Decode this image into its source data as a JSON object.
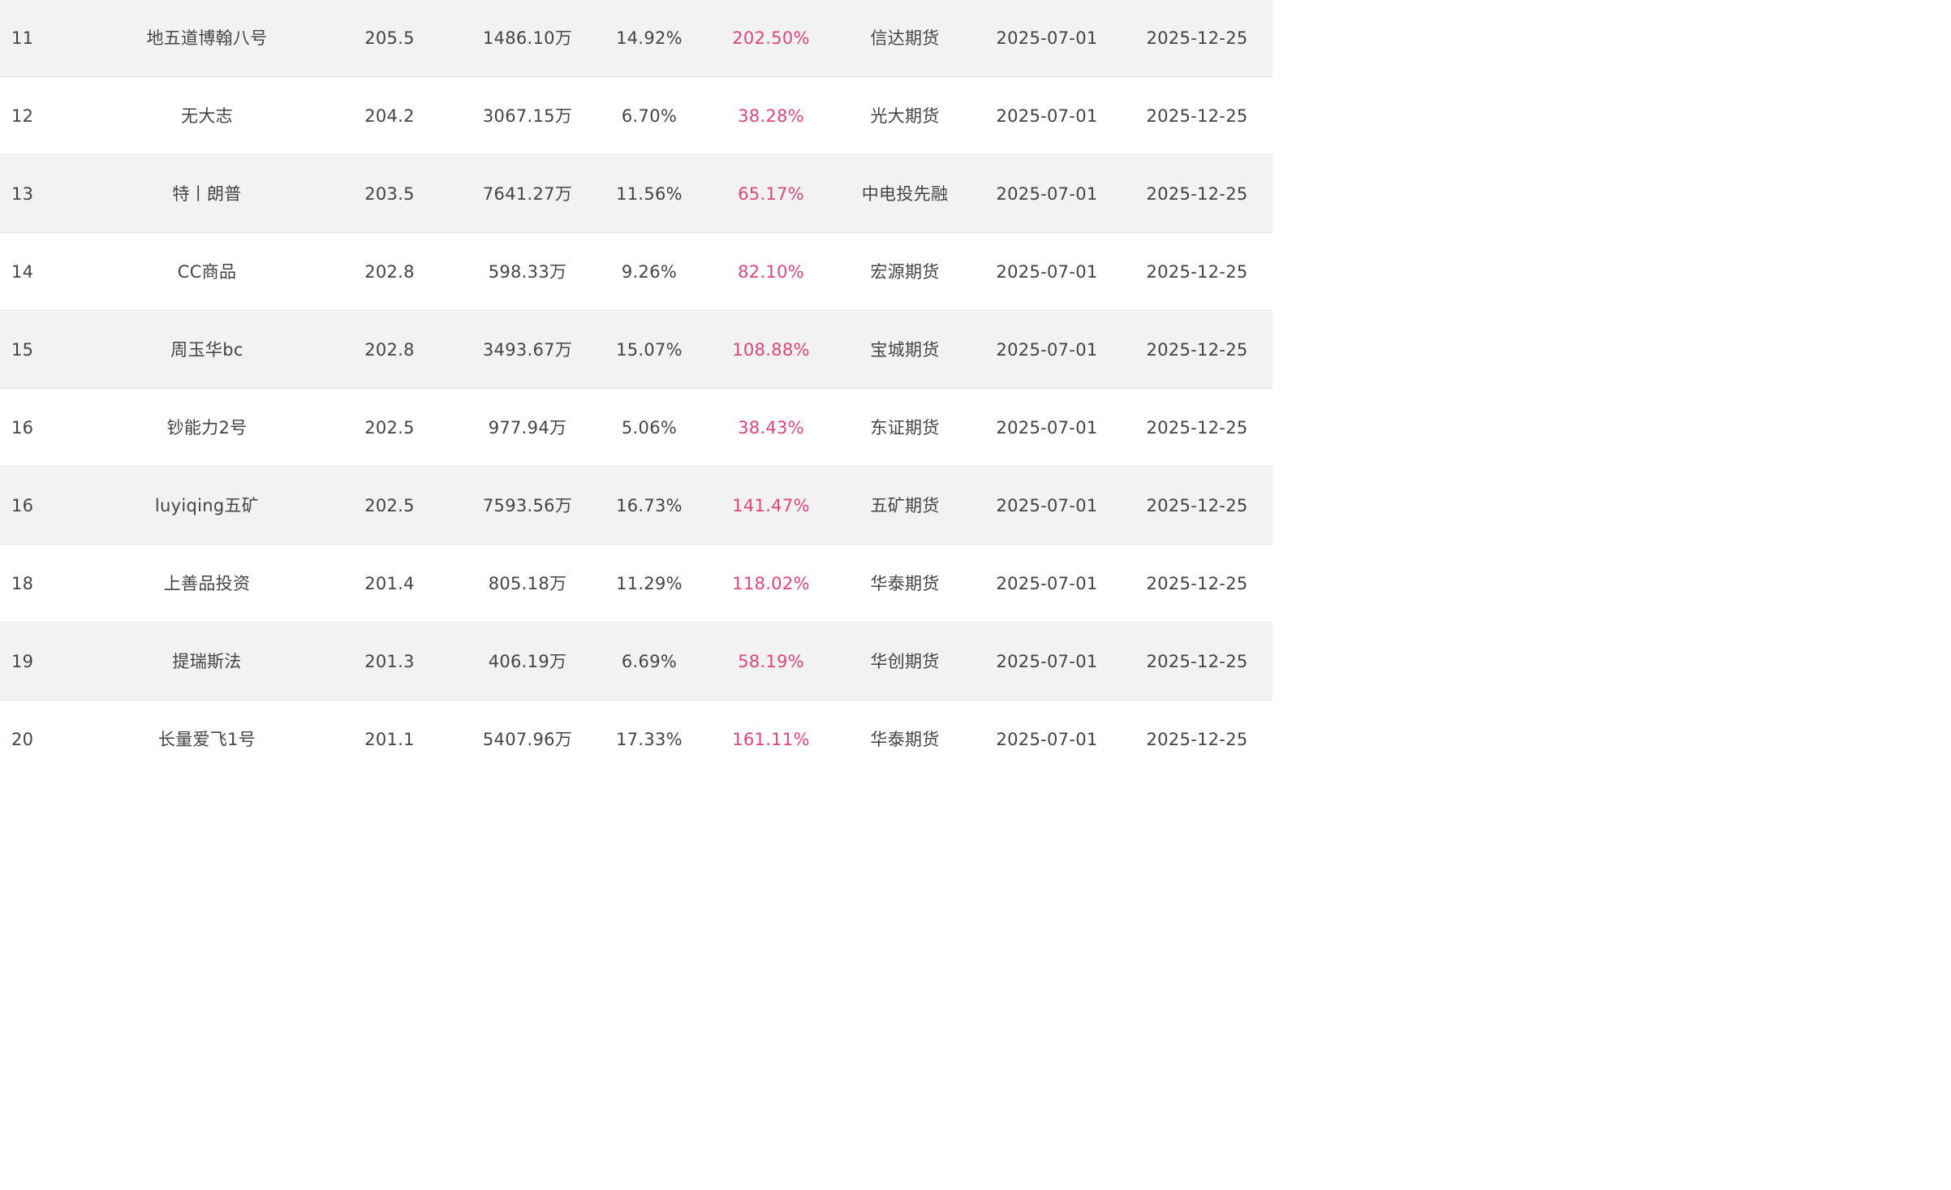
{
  "colors": {
    "row_odd_bg": "#f2f2f2",
    "row_even_bg": "#ffffff",
    "text": "#444444",
    "return_highlight": "#e0457b"
  },
  "rows": [
    {
      "rank": "11",
      "name": "地五道博翰八号",
      "score": "205.5",
      "scale": "1486.10万",
      "drawdown": "14.92%",
      "return": "202.50%",
      "broker": "信达期货",
      "start_date": "2025-07-01",
      "end_date": "2025-12-25"
    },
    {
      "rank": "12",
      "name": "无大志",
      "score": "204.2",
      "scale": "3067.15万",
      "drawdown": "6.70%",
      "return": "38.28%",
      "broker": "光大期货",
      "start_date": "2025-07-01",
      "end_date": "2025-12-25"
    },
    {
      "rank": "13",
      "name": "特丨朗普",
      "score": "203.5",
      "scale": "7641.27万",
      "drawdown": "11.56%",
      "return": "65.17%",
      "broker": "中电投先融",
      "start_date": "2025-07-01",
      "end_date": "2025-12-25"
    },
    {
      "rank": "14",
      "name": "CC商品",
      "score": "202.8",
      "scale": "598.33万",
      "drawdown": "9.26%",
      "return": "82.10%",
      "broker": "宏源期货",
      "start_date": "2025-07-01",
      "end_date": "2025-12-25"
    },
    {
      "rank": "15",
      "name": "周玉华bc",
      "score": "202.8",
      "scale": "3493.67万",
      "drawdown": "15.07%",
      "return": "108.88%",
      "broker": "宝城期货",
      "start_date": "2025-07-01",
      "end_date": "2025-12-25"
    },
    {
      "rank": "16",
      "name": "钞能力2号",
      "score": "202.5",
      "scale": "977.94万",
      "drawdown": "5.06%",
      "return": "38.43%",
      "broker": "东证期货",
      "start_date": "2025-07-01",
      "end_date": "2025-12-25"
    },
    {
      "rank": "16",
      "name": "luyiqing五矿",
      "score": "202.5",
      "scale": "7593.56万",
      "drawdown": "16.73%",
      "return": "141.47%",
      "broker": "五矿期货",
      "start_date": "2025-07-01",
      "end_date": "2025-12-25"
    },
    {
      "rank": "18",
      "name": "上善品投资",
      "score": "201.4",
      "scale": "805.18万",
      "drawdown": "11.29%",
      "return": "118.02%",
      "broker": "华泰期货",
      "start_date": "2025-07-01",
      "end_date": "2025-12-25"
    },
    {
      "rank": "19",
      "name": "提瑞斯法",
      "score": "201.3",
      "scale": "406.19万",
      "drawdown": "6.69%",
      "return": "58.19%",
      "broker": "华创期货",
      "start_date": "2025-07-01",
      "end_date": "2025-12-25"
    },
    {
      "rank": "20",
      "name": "长量爱飞1号",
      "score": "201.1",
      "scale": "5407.96万",
      "drawdown": "17.33%",
      "return": "161.11%",
      "broker": "华泰期货",
      "start_date": "2025-07-01",
      "end_date": "2025-12-25"
    }
  ]
}
